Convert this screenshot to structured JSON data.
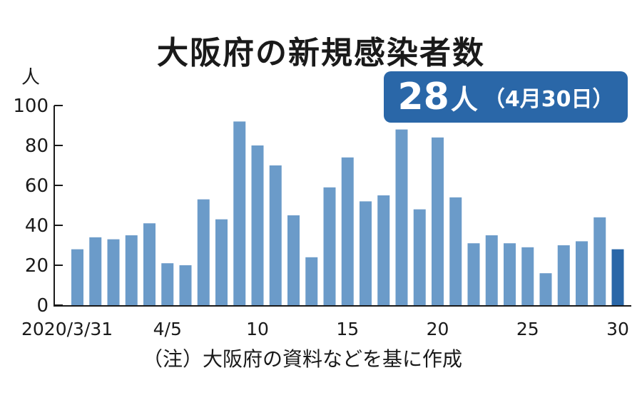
{
  "chart_data": {
    "type": "bar",
    "title": "大阪府の新規感染者数",
    "ylabel": "人",
    "ylim": [
      0,
      100
    ],
    "yticks": [
      0,
      20,
      40,
      60,
      80,
      100
    ],
    "x": [
      "2020/3/31",
      "4/1",
      "4/2",
      "4/3",
      "4/4",
      "4/5",
      "4/6",
      "4/7",
      "4/8",
      "4/9",
      "4/10",
      "4/11",
      "4/12",
      "4/13",
      "4/14",
      "4/15",
      "4/16",
      "4/17",
      "4/18",
      "4/19",
      "4/20",
      "4/21",
      "4/22",
      "4/23",
      "4/24",
      "4/25",
      "4/26",
      "4/27",
      "4/28",
      "4/29",
      "4/30"
    ],
    "values": [
      28,
      34,
      33,
      35,
      41,
      21,
      20,
      53,
      43,
      92,
      80,
      70,
      45,
      24,
      59,
      74,
      52,
      55,
      88,
      48,
      84,
      54,
      31,
      35,
      31,
      29,
      16,
      30,
      32,
      44,
      28
    ],
    "xtick_labels": [
      {
        "index": 0,
        "label": "2020/3/31"
      },
      {
        "index": 5,
        "label": "4/5"
      },
      {
        "index": 10,
        "label": "10"
      },
      {
        "index": 15,
        "label": "15"
      },
      {
        "index": 20,
        "label": "20"
      },
      {
        "index": 25,
        "label": "25"
      },
      {
        "index": 30,
        "label": "30"
      }
    ],
    "highlight_index": 30,
    "grid": false,
    "colors": {
      "bar": "#6b9bc9",
      "highlight": "#2a67a8",
      "axis": "#1a1a1a"
    }
  },
  "callout": {
    "value": "28",
    "unit": "人",
    "date": "（4月30日）"
  },
  "note": "（注）大阪府の資料などを基に作成"
}
